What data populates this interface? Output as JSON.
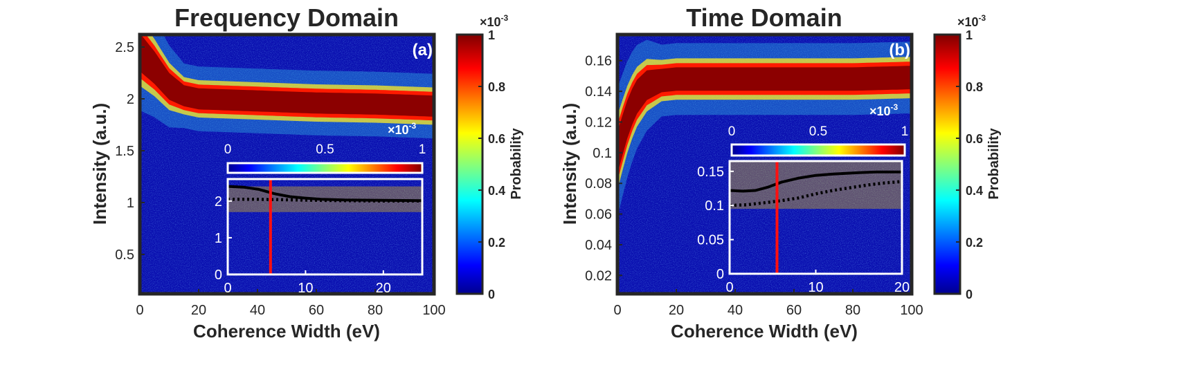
{
  "chart_data": [
    {
      "id": "a",
      "type": "heatmap",
      "title": "Frequency Domain",
      "panel_label": "(a)",
      "xlabel": "Coherence Width (eV)",
      "ylabel": "Intensity (a.u.)",
      "xlim": [
        0,
        100
      ],
      "ylim": [
        0.12,
        2.62
      ],
      "xticks": [
        0,
        20,
        40,
        60,
        80,
        100
      ],
      "yticks": [
        0.5,
        1,
        1.5,
        2,
        2.5
      ],
      "xtick_labels": [
        "0",
        "20",
        "40",
        "60",
        "80",
        "100"
      ],
      "ytick_labels": [
        "0.5",
        "1",
        "1.5",
        "2",
        "2.5"
      ],
      "ridge": {
        "x": [
          0,
          5,
          10,
          15,
          20,
          30,
          40,
          60,
          80,
          100
        ],
        "center": [
          2.45,
          2.3,
          2.12,
          2.03,
          2.0,
          1.99,
          1.98,
          1.96,
          1.95,
          1.93
        ],
        "halfwidth": 0.12
      },
      "colorbar": {
        "label": "Probability",
        "range": [
          0,
          1
        ],
        "ticks": [
          0,
          0.2,
          0.4,
          0.6,
          0.8,
          1
        ],
        "tick_labels": [
          "0",
          "0.2",
          "0.4",
          "0.6",
          "0.8",
          "1"
        ],
        "exponent": "×10",
        "exponent_power": "-3"
      },
      "inset": {
        "xlim": [
          0,
          25
        ],
        "ylim": [
          0,
          2.6
        ],
        "xticks": [
          0,
          10,
          20
        ],
        "yticks": [
          0,
          1,
          2
        ],
        "xtick_labels": [
          "0",
          "10",
          "20"
        ],
        "ytick_labels": [
          "0",
          "1",
          "2"
        ],
        "colorbar_ticks": [
          0,
          0.5,
          1
        ],
        "colorbar_tick_labels": [
          "0",
          "0.5",
          "1"
        ],
        "exponent": "×10",
        "exponent_power": "-3",
        "vline_x": 5.5,
        "solid_line": {
          "x": [
            0,
            2,
            4,
            6,
            8,
            10,
            12,
            15,
            20,
            25
          ],
          "y": [
            2.4,
            2.38,
            2.32,
            2.2,
            2.12,
            2.08,
            2.05,
            2.03,
            2.02,
            2.01
          ]
        },
        "dotted_line": {
          "x": [
            0,
            3,
            6,
            9,
            12,
            15,
            20,
            25
          ],
          "y": [
            2.05,
            2.05,
            2.04,
            2.03,
            2.02,
            2.01,
            2.0,
            2.0
          ]
        },
        "band_center": 2.05,
        "band_halfwidth": 0.35
      }
    },
    {
      "id": "b",
      "type": "heatmap",
      "title": "Time Domain",
      "panel_label": "(b)",
      "xlabel": "Coherence Width (eV)",
      "ylabel": "Intensity (a.u.)",
      "xlim": [
        0,
        100
      ],
      "ylim": [
        0.008,
        0.177
      ],
      "xticks": [
        0,
        20,
        40,
        60,
        80,
        100
      ],
      "yticks": [
        0.02,
        0.04,
        0.06,
        0.08,
        0.1,
        0.12,
        0.14,
        0.16
      ],
      "xtick_labels": [
        "0",
        "20",
        "40",
        "60",
        "80",
        "100"
      ],
      "ytick_labels": [
        "0.02",
        "0.04",
        "0.06",
        "0.08",
        "0.1",
        "0.12",
        "0.14",
        "0.16"
      ],
      "ridge": {
        "x": [
          0,
          3,
          6,
          10,
          15,
          20,
          40,
          60,
          80,
          100
        ],
        "center": [
          0.1,
          0.12,
          0.135,
          0.144,
          0.147,
          0.148,
          0.148,
          0.148,
          0.148,
          0.149
        ],
        "halfwidth": 0.009
      },
      "colorbar": {
        "label": "Probability",
        "range": [
          0,
          1
        ],
        "ticks": [
          0,
          0.2,
          0.4,
          0.6,
          0.8,
          1
        ],
        "tick_labels": [
          "0",
          "0.2",
          "0.4",
          "0.6",
          "0.8",
          "1"
        ],
        "exponent": "×10",
        "exponent_power": "-3"
      },
      "inset": {
        "xlim": [
          0,
          20
        ],
        "ylim": [
          0,
          0.165
        ],
        "xticks": [
          0,
          10,
          20
        ],
        "yticks": [
          0,
          0.05,
          0.1,
          0.15
        ],
        "xtick_labels": [
          "0",
          "10",
          "20"
        ],
        "ytick_labels": [
          "0",
          "0.05",
          "0.1",
          "0.15"
        ],
        "colorbar_ticks": [
          0,
          0.5,
          1
        ],
        "colorbar_tick_labels": [
          "0",
          "0.5",
          "1"
        ],
        "exponent": "×10",
        "exponent_power": "-3",
        "vline_x": 5.5,
        "solid_line": {
          "x": [
            0,
            1.5,
            3,
            4.5,
            6,
            8,
            10,
            12,
            15,
            17,
            20
          ],
          "y": [
            0.122,
            0.121,
            0.122,
            0.127,
            0.134,
            0.14,
            0.144,
            0.146,
            0.148,
            0.149,
            0.149
          ]
        },
        "dotted_line": {
          "x": [
            0,
            2,
            4,
            6,
            8,
            10,
            12,
            14,
            16,
            18,
            20
          ],
          "y": [
            0.1,
            0.101,
            0.104,
            0.107,
            0.111,
            0.117,
            0.122,
            0.126,
            0.13,
            0.133,
            0.135
          ]
        },
        "band_center": 0.13,
        "band_halfwidth": 0.035
      }
    }
  ]
}
